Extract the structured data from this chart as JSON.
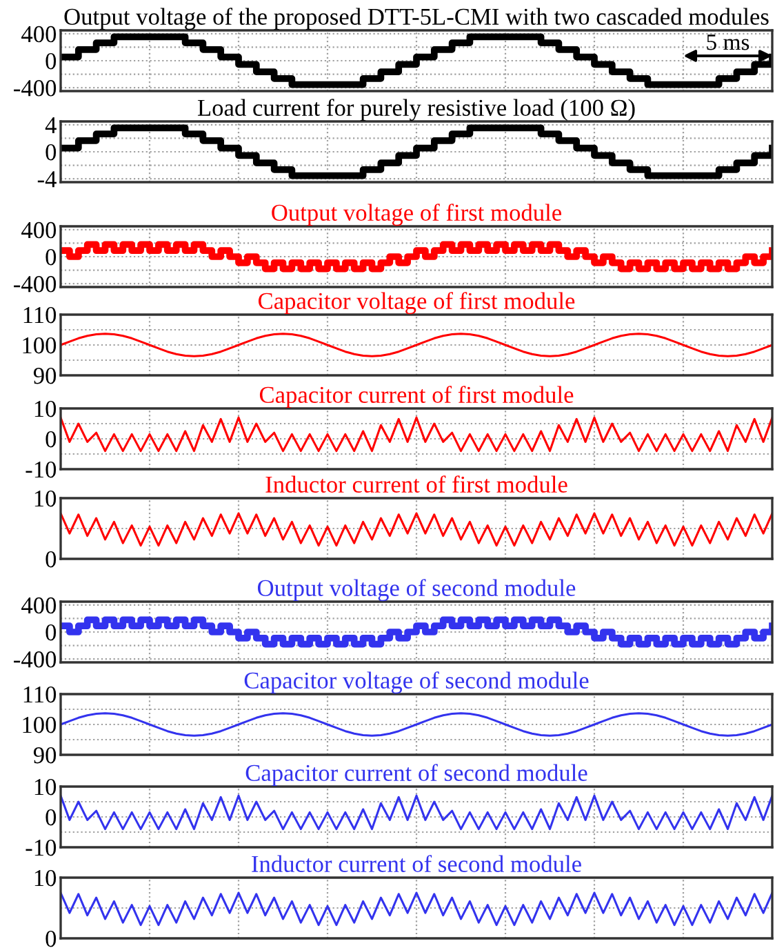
{
  "chart_data": [
    {
      "type": "step",
      "title": "Output voltage of the proposed DTT-5L-CMI with two cascaded modules",
      "categories": [
        null,
        null,
        null,
        null,
        null,
        null,
        null,
        null,
        null,
        null,
        null,
        null,
        null,
        null,
        null,
        null,
        null,
        null,
        null,
        null,
        null,
        null,
        null,
        null,
        null,
        null,
        null,
        null,
        null,
        null,
        null,
        null,
        null,
        null,
        null,
        null,
        null,
        null,
        null,
        null,
        null,
        null,
        null,
        null,
        null,
        null,
        null,
        null,
        null,
        null,
        null,
        null,
        null,
        null,
        null,
        null,
        null,
        null,
        null,
        null,
        null,
        null,
        null,
        null,
        null,
        null,
        null,
        null,
        null,
        null,
        null,
        null,
        null,
        null,
        null,
        null,
        null,
        null,
        null,
        null,
        null
      ],
      "ylim": [
        -450,
        450
      ],
      "yticks": [
        -400,
        {
          "value": -200,
          "label": null
        },
        0,
        {
          "value": 200,
          "label": null
        },
        400
      ],
      "grid": true,
      "tick_labels": "y",
      "series": [
        {
          "color": "#000000",
          "values": [
            55,
            55,
            165,
            165,
            265,
            265,
            355,
            355,
            355,
            355,
            355,
            355,
            355,
            355,
            265,
            265,
            165,
            165,
            55,
            55,
            -55,
            -55,
            -165,
            -165,
            -265,
            -265,
            -355,
            -355,
            -355,
            -355,
            -355,
            -355,
            -355,
            -355,
            -265,
            -265,
            -165,
            -165,
            -55,
            -55,
            55,
            55,
            165,
            165,
            265,
            265,
            355,
            355,
            355,
            355,
            355,
            355,
            355,
            355,
            265,
            265,
            165,
            165,
            55,
            55,
            -55,
            -55,
            -165,
            -165,
            -265,
            -265,
            -355,
            -355,
            -355,
            -355,
            -355,
            -355,
            -355,
            -355,
            -265,
            -265,
            -165,
            -165,
            -55,
            -55,
            55
          ]
        }
      ],
      "annotations": [
        "5 ms"
      ]
    },
    {
      "type": "step",
      "title": "Load current for purely resistive load (100 Ω)",
      "categories": [
        null,
        null,
        null,
        null,
        null,
        null,
        null,
        null,
        null,
        null,
        null,
        null,
        null,
        null,
        null,
        null,
        null,
        null,
        null,
        null,
        null,
        null,
        null,
        null,
        null,
        null,
        null,
        null,
        null,
        null,
        null,
        null,
        null,
        null,
        null,
        null,
        null,
        null,
        null,
        null,
        null,
        null,
        null,
        null,
        null,
        null,
        null,
        null,
        null,
        null,
        null,
        null,
        null,
        null,
        null,
        null,
        null,
        null,
        null,
        null,
        null,
        null,
        null,
        null,
        null,
        null,
        null,
        null,
        null,
        null,
        null,
        null,
        null,
        null,
        null,
        null,
        null,
        null,
        null,
        null,
        null
      ],
      "ylim": [
        -4.5,
        4.5
      ],
      "yticks": [
        -4,
        {
          "value": -2,
          "label": null
        },
        0,
        {
          "value": 2,
          "label": null
        },
        4
      ],
      "grid": true,
      "tick_labels": "y",
      "series": [
        {
          "color": "#000000",
          "values": [
            0.55,
            0.55,
            1.65,
            1.65,
            2.65,
            2.65,
            3.55,
            3.55,
            3.55,
            3.55,
            3.55,
            3.55,
            3.55,
            3.55,
            2.65,
            2.65,
            1.65,
            1.65,
            0.55,
            0.55,
            -0.55,
            -0.55,
            -1.65,
            -1.65,
            -2.65,
            -2.65,
            -3.55,
            -3.55,
            -3.55,
            -3.55,
            -3.55,
            -3.55,
            -3.55,
            -3.55,
            -2.65,
            -2.65,
            -1.65,
            -1.65,
            -0.55,
            -0.55,
            0.55,
            0.55,
            1.65,
            1.65,
            2.65,
            2.65,
            3.55,
            3.55,
            3.55,
            3.55,
            3.55,
            3.55,
            3.55,
            3.55,
            2.65,
            2.65,
            1.65,
            1.65,
            0.55,
            0.55,
            -0.55,
            -0.55,
            -1.65,
            -1.65,
            -2.65,
            -2.65,
            -3.55,
            -3.55,
            -3.55,
            -3.55,
            -3.55,
            -3.55,
            -3.55,
            -3.55,
            -2.65,
            -2.65,
            -1.65,
            -1.65,
            -0.55,
            -0.55,
            0.55
          ]
        }
      ]
    },
    {
      "type": "step",
      "title": "Output voltage of first module",
      "categories": [
        null,
        null,
        null,
        null,
        null,
        null,
        null,
        null,
        null,
        null,
        null,
        null,
        null,
        null,
        null,
        null,
        null,
        null,
        null,
        null,
        null,
        null,
        null,
        null,
        null,
        null,
        null,
        null,
        null,
        null,
        null,
        null,
        null,
        null,
        null,
        null,
        null,
        null,
        null,
        null,
        null,
        null,
        null,
        null,
        null,
        null,
        null,
        null,
        null,
        null,
        null,
        null,
        null,
        null,
        null,
        null,
        null,
        null,
        null,
        null,
        null,
        null,
        null,
        null,
        null,
        null,
        null,
        null,
        null,
        null,
        null,
        null,
        null,
        null,
        null,
        null,
        null,
        null,
        null,
        null,
        null
      ],
      "ylim": [
        -450,
        450
      ],
      "yticks": [
        -400,
        {
          "value": -200,
          "label": null
        },
        0,
        {
          "value": 200,
          "label": null
        },
        400
      ],
      "grid": true,
      "tick_labels": "y",
      "series": [
        {
          "color": "#ff0000",
          "values": [
            90,
            0,
            90,
            180,
            90,
            180,
            90,
            180,
            90,
            180,
            90,
            180,
            90,
            180,
            90,
            180,
            90,
            0,
            90,
            0,
            -90,
            0,
            -90,
            -180,
            -90,
            -180,
            -90,
            -180,
            -90,
            -180,
            -90,
            -180,
            -90,
            -180,
            -90,
            -180,
            -90,
            0,
            -90,
            0,
            90,
            0,
            90,
            180,
            90,
            180,
            90,
            180,
            90,
            180,
            90,
            180,
            90,
            180,
            90,
            180,
            90,
            0,
            90,
            0,
            -90,
            0,
            -90,
            -180,
            -90,
            -180,
            -90,
            -180,
            -90,
            -180,
            -90,
            -180,
            -90,
            -180,
            -90,
            -180,
            -90,
            0,
            -90,
            0,
            90
          ]
        }
      ]
    },
    {
      "type": "line",
      "title": "Capacitor voltage of first module",
      "categories": [
        null,
        null,
        null,
        null,
        null,
        null,
        null,
        null,
        null,
        null,
        null,
        null,
        null,
        null,
        null,
        null,
        null,
        null,
        null,
        null,
        null,
        null,
        null,
        null,
        null,
        null,
        null,
        null,
        null,
        null,
        null,
        null,
        null,
        null,
        null,
        null,
        null,
        null,
        null,
        null,
        null,
        null,
        null,
        null,
        null,
        null,
        null,
        null,
        null,
        null,
        null,
        null,
        null,
        null,
        null,
        null,
        null,
        null,
        null,
        null,
        null,
        null,
        null,
        null,
        null,
        null,
        null,
        null,
        null,
        null,
        null,
        null,
        null,
        null,
        null,
        null,
        null,
        null,
        null,
        null,
        null
      ],
      "ylim": [
        90,
        110
      ],
      "yticks": [
        90,
        {
          "value": 95,
          "label": null
        },
        100,
        {
          "value": 105,
          "label": null
        },
        110
      ],
      "grid": true,
      "tick_labels": "y",
      "series": [
        {
          "color": "#ff0000",
          "values": [
            100,
            101.1,
            102.2,
            103,
            103.5,
            103.7,
            103.5,
            103,
            102.2,
            101.1,
            100,
            98.9,
            97.8,
            97,
            96.5,
            96.3,
            96.5,
            97,
            97.8,
            98.9,
            100,
            101.1,
            102.2,
            103,
            103.5,
            103.7,
            103.5,
            103,
            102.2,
            101.1,
            100,
            98.9,
            97.8,
            97,
            96.5,
            96.3,
            96.5,
            97,
            97.8,
            98.9,
            100,
            101.1,
            102.2,
            103,
            103.5,
            103.7,
            103.5,
            103,
            102.2,
            101.1,
            100,
            98.9,
            97.8,
            97,
            96.5,
            96.3,
            96.5,
            97,
            97.8,
            98.9,
            100,
            101.1,
            102.2,
            103,
            103.5,
            103.7,
            103.5,
            103,
            102.2,
            101.1,
            100,
            98.9,
            97.8,
            97,
            96.5,
            96.3,
            96.5,
            97,
            97.8,
            98.9,
            100
          ]
        }
      ]
    },
    {
      "type": "line",
      "title": "Capacitor current of first module",
      "categories": [
        null,
        null,
        null,
        null,
        null,
        null,
        null,
        null,
        null,
        null,
        null,
        null,
        null,
        null,
        null,
        null,
        null,
        null,
        null,
        null,
        null,
        null,
        null,
        null,
        null,
        null,
        null,
        null,
        null,
        null,
        null,
        null,
        null,
        null,
        null,
        null,
        null,
        null,
        null,
        null,
        null,
        null,
        null,
        null,
        null,
        null,
        null,
        null,
        null,
        null,
        null,
        null,
        null,
        null,
        null,
        null,
        null,
        null,
        null,
        null,
        null,
        null,
        null,
        null,
        null,
        null,
        null,
        null,
        null,
        null,
        null,
        null,
        null,
        null,
        null,
        null,
        null,
        null,
        null,
        null,
        null
      ],
      "ylim": [
        -10,
        10
      ],
      "yticks": [
        -10,
        {
          "value": -5,
          "label": null
        },
        0,
        {
          "value": 5,
          "label": null
        },
        10
      ],
      "grid": true,
      "tick_labels": "y",
      "series": [
        {
          "color": "#ff0000",
          "values": [
            7,
            -1,
            5,
            -1,
            2,
            -4,
            1.5,
            -4,
            1.5,
            -4,
            1.5,
            -4,
            1.5,
            -4,
            2.5,
            -4,
            4.5,
            -1,
            6.5,
            -1,
            7,
            -1,
            5,
            -1,
            2,
            -4,
            1.5,
            -4,
            1.5,
            -4,
            1.5,
            -4,
            1.5,
            -4,
            2.5,
            -4,
            4.5,
            -1,
            6.5,
            -1,
            7,
            -1,
            5,
            -1,
            2,
            -4,
            1.5,
            -4,
            1.5,
            -4,
            1.5,
            -4,
            1.5,
            -4,
            2.5,
            -4,
            4.5,
            -1,
            6.5,
            -1,
            7,
            -1,
            5,
            -1,
            2,
            -4,
            1.5,
            -4,
            1.5,
            -4,
            1.5,
            -4,
            1.5,
            -4,
            2.5,
            -4,
            4.5,
            -1,
            6.5,
            -1,
            7
          ]
        }
      ]
    },
    {
      "type": "line",
      "title": "Inductor current of first module",
      "categories": [
        null,
        null,
        null,
        null,
        null,
        null,
        null,
        null,
        null,
        null,
        null,
        null,
        null,
        null,
        null,
        null,
        null,
        null,
        null,
        null,
        null,
        null,
        null,
        null,
        null,
        null,
        null,
        null,
        null,
        null,
        null,
        null,
        null,
        null,
        null,
        null,
        null,
        null,
        null,
        null,
        null,
        null,
        null,
        null,
        null,
        null,
        null,
        null,
        null,
        null,
        null,
        null,
        null,
        null,
        null,
        null,
        null,
        null,
        null,
        null,
        null,
        null,
        null,
        null,
        null,
        null,
        null,
        null,
        null,
        null,
        null,
        null,
        null,
        null,
        null,
        null,
        null,
        null,
        null,
        null,
        null
      ],
      "ylim": [
        0,
        10
      ],
      "yticks": [
        0,
        {
          "value": 5,
          "label": null
        },
        10
      ],
      "grid": true,
      "tick_labels": "y",
      "series": [
        {
          "color": "#ff0000",
          "values": [
            7.5,
            4.2,
            7.3,
            3.8,
            6.7,
            3.2,
            6.1,
            2.6,
            5.5,
            2.2,
            5.3,
            2.2,
            5.5,
            2.6,
            6.1,
            3.2,
            6.7,
            3.8,
            7.3,
            4.2,
            7.5,
            4.2,
            7.3,
            3.8,
            6.7,
            3.2,
            6.1,
            2.6,
            5.5,
            2.2,
            5.3,
            2.2,
            5.5,
            2.6,
            6.1,
            3.2,
            6.7,
            3.8,
            7.3,
            4.2,
            7.5,
            4.2,
            7.3,
            3.8,
            6.7,
            3.2,
            6.1,
            2.6,
            5.5,
            2.2,
            5.3,
            2.2,
            5.5,
            2.6,
            6.1,
            3.2,
            6.7,
            3.8,
            7.3,
            4.2,
            7.5,
            4.2,
            7.3,
            3.8,
            6.7,
            3.2,
            6.1,
            2.6,
            5.5,
            2.2,
            5.3,
            2.2,
            5.5,
            2.6,
            6.1,
            3.2,
            6.7,
            3.8,
            7.3,
            4.2,
            7.5
          ]
        }
      ]
    },
    {
      "type": "step",
      "title": "Output voltage of second module",
      "categories": [
        null,
        null,
        null,
        null,
        null,
        null,
        null,
        null,
        null,
        null,
        null,
        null,
        null,
        null,
        null,
        null,
        null,
        null,
        null,
        null,
        null,
        null,
        null,
        null,
        null,
        null,
        null,
        null,
        null,
        null,
        null,
        null,
        null,
        null,
        null,
        null,
        null,
        null,
        null,
        null,
        null,
        null,
        null,
        null,
        null,
        null,
        null,
        null,
        null,
        null,
        null,
        null,
        null,
        null,
        null,
        null,
        null,
        null,
        null,
        null,
        null,
        null,
        null,
        null,
        null,
        null,
        null,
        null,
        null,
        null,
        null,
        null,
        null,
        null,
        null,
        null,
        null,
        null,
        null,
        null,
        null
      ],
      "ylim": [
        -450,
        450
      ],
      "yticks": [
        -400,
        {
          "value": -200,
          "label": null
        },
        0,
        {
          "value": 200,
          "label": null
        },
        400
      ],
      "grid": true,
      "tick_labels": "y",
      "series": [
        {
          "color": "#3333ee",
          "values": [
            90,
            0,
            90,
            180,
            90,
            180,
            90,
            180,
            90,
            180,
            90,
            180,
            90,
            180,
            90,
            180,
            90,
            0,
            90,
            0,
            -90,
            0,
            -90,
            -180,
            -90,
            -180,
            -90,
            -180,
            -90,
            -180,
            -90,
            -180,
            -90,
            -180,
            -90,
            -180,
            -90,
            0,
            -90,
            0,
            90,
            0,
            90,
            180,
            90,
            180,
            90,
            180,
            90,
            180,
            90,
            180,
            90,
            180,
            90,
            180,
            90,
            0,
            90,
            0,
            -90,
            0,
            -90,
            -180,
            -90,
            -180,
            -90,
            -180,
            -90,
            -180,
            -90,
            -180,
            -90,
            -180,
            -90,
            -180,
            -90,
            0,
            -90,
            0,
            90
          ]
        }
      ]
    },
    {
      "type": "line",
      "title": "Capacitor voltage of second module",
      "categories": [
        null,
        null,
        null,
        null,
        null,
        null,
        null,
        null,
        null,
        null,
        null,
        null,
        null,
        null,
        null,
        null,
        null,
        null,
        null,
        null,
        null,
        null,
        null,
        null,
        null,
        null,
        null,
        null,
        null,
        null,
        null,
        null,
        null,
        null,
        null,
        null,
        null,
        null,
        null,
        null,
        null,
        null,
        null,
        null,
        null,
        null,
        null,
        null,
        null,
        null,
        null,
        null,
        null,
        null,
        null,
        null,
        null,
        null,
        null,
        null,
        null,
        null,
        null,
        null,
        null,
        null,
        null,
        null,
        null,
        null,
        null,
        null,
        null,
        null,
        null,
        null,
        null,
        null,
        null,
        null,
        null
      ],
      "ylim": [
        90,
        110
      ],
      "yticks": [
        90,
        {
          "value": 95,
          "label": null
        },
        100,
        {
          "value": 105,
          "label": null
        },
        110
      ],
      "grid": true,
      "tick_labels": "y",
      "series": [
        {
          "color": "#3333ee",
          "values": [
            100,
            101.1,
            102.2,
            103,
            103.5,
            103.7,
            103.5,
            103,
            102.2,
            101.1,
            100,
            98.9,
            97.8,
            97,
            96.5,
            96.3,
            96.5,
            97,
            97.8,
            98.9,
            100,
            101.1,
            102.2,
            103,
            103.5,
            103.7,
            103.5,
            103,
            102.2,
            101.1,
            100,
            98.9,
            97.8,
            97,
            96.5,
            96.3,
            96.5,
            97,
            97.8,
            98.9,
            100,
            101.1,
            102.2,
            103,
            103.5,
            103.7,
            103.5,
            103,
            102.2,
            101.1,
            100,
            98.9,
            97.8,
            97,
            96.5,
            96.3,
            96.5,
            97,
            97.8,
            98.9,
            100,
            101.1,
            102.2,
            103,
            103.5,
            103.7,
            103.5,
            103,
            102.2,
            101.1,
            100,
            98.9,
            97.8,
            97,
            96.5,
            96.3,
            96.5,
            97,
            97.8,
            98.9,
            100
          ]
        }
      ]
    },
    {
      "type": "line",
      "title": "Capacitor current of second module",
      "categories": [
        null,
        null,
        null,
        null,
        null,
        null,
        null,
        null,
        null,
        null,
        null,
        null,
        null,
        null,
        null,
        null,
        null,
        null,
        null,
        null,
        null,
        null,
        null,
        null,
        null,
        null,
        null,
        null,
        null,
        null,
        null,
        null,
        null,
        null,
        null,
        null,
        null,
        null,
        null,
        null,
        null,
        null,
        null,
        null,
        null,
        null,
        null,
        null,
        null,
        null,
        null,
        null,
        null,
        null,
        null,
        null,
        null,
        null,
        null,
        null,
        null,
        null,
        null,
        null,
        null,
        null,
        null,
        null,
        null,
        null,
        null,
        null,
        null,
        null,
        null,
        null,
        null,
        null,
        null,
        null,
        null
      ],
      "ylim": [
        -10,
        10
      ],
      "yticks": [
        -10,
        {
          "value": -5,
          "label": null
        },
        0,
        {
          "value": 5,
          "label": null
        },
        10
      ],
      "grid": true,
      "tick_labels": "y",
      "series": [
        {
          "color": "#3333ee",
          "values": [
            7,
            -1,
            5,
            -1,
            2,
            -4,
            1.5,
            -4,
            1.5,
            -4,
            1.5,
            -4,
            1.5,
            -4,
            2.5,
            -4,
            4.5,
            -1,
            6.5,
            -1,
            7,
            -1,
            5,
            -1,
            2,
            -4,
            1.5,
            -4,
            1.5,
            -4,
            1.5,
            -4,
            1.5,
            -4,
            2.5,
            -4,
            4.5,
            -1,
            6.5,
            -1,
            7,
            -1,
            5,
            -1,
            2,
            -4,
            1.5,
            -4,
            1.5,
            -4,
            1.5,
            -4,
            1.5,
            -4,
            2.5,
            -4,
            4.5,
            -1,
            6.5,
            -1,
            7,
            -1,
            5,
            -1,
            2,
            -4,
            1.5,
            -4,
            1.5,
            -4,
            1.5,
            -4,
            1.5,
            -4,
            2.5,
            -4,
            4.5,
            -1,
            6.5,
            -1,
            7
          ]
        }
      ]
    },
    {
      "type": "line",
      "title": "Inductor current of second module",
      "categories": [
        null,
        null,
        null,
        null,
        null,
        null,
        null,
        null,
        null,
        null,
        null,
        null,
        null,
        null,
        null,
        null,
        null,
        null,
        null,
        null,
        null,
        null,
        null,
        null,
        null,
        null,
        null,
        null,
        null,
        null,
        null,
        null,
        null,
        null,
        null,
        null,
        null,
        null,
        null,
        null,
        null,
        null,
        null,
        null,
        null,
        null,
        null,
        null,
        null,
        null,
        null,
        null,
        null,
        null,
        null,
        null,
        null,
        null,
        null,
        null,
        null,
        null,
        null,
        null,
        null,
        null,
        null,
        null,
        null,
        null,
        null,
        null,
        null,
        null,
        null,
        null,
        null,
        null,
        null,
        null,
        null
      ],
      "ylim": [
        0,
        10
      ],
      "yticks": [
        0,
        {
          "value": 5,
          "label": null
        },
        10
      ],
      "grid": true,
      "tick_labels": "y",
      "series": [
        {
          "color": "#3333ee",
          "values": [
            7.5,
            4.2,
            7.3,
            3.8,
            6.7,
            3.2,
            6.1,
            2.6,
            5.5,
            2.2,
            5.3,
            2.2,
            5.5,
            2.6,
            6.1,
            3.2,
            6.7,
            3.8,
            7.3,
            4.2,
            7.5,
            4.2,
            7.3,
            3.8,
            6.7,
            3.2,
            6.1,
            2.6,
            5.5,
            2.2,
            5.3,
            2.2,
            5.5,
            2.6,
            6.1,
            3.2,
            6.7,
            3.8,
            7.3,
            4.2,
            7.5,
            4.2,
            7.3,
            3.8,
            6.7,
            3.2,
            6.1,
            2.6,
            5.5,
            2.2,
            5.3,
            2.2,
            5.5,
            2.6,
            6.1,
            3.2,
            6.7,
            3.8,
            7.3,
            4.2,
            7.5,
            4.2,
            7.3,
            3.8,
            6.7,
            3.2,
            6.1,
            2.6,
            5.5,
            2.2,
            5.3,
            2.2,
            5.5,
            2.6,
            6.1,
            3.2,
            6.7,
            3.8,
            7.3,
            4.2,
            7.5
          ]
        }
      ]
    }
  ]
}
